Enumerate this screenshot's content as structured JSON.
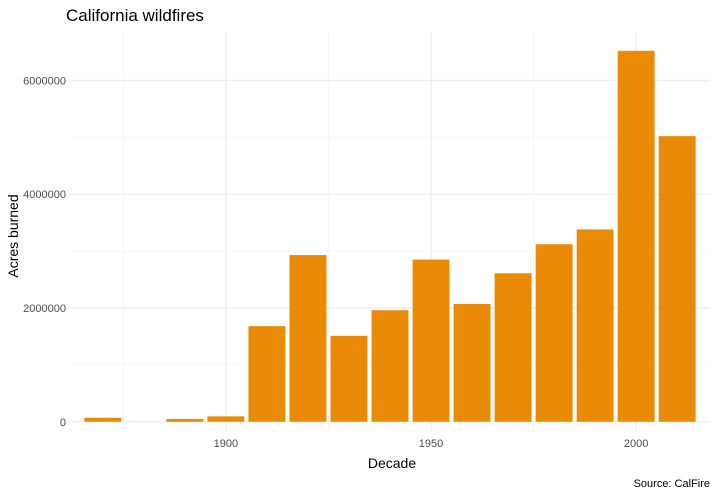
{
  "chart_data": {
    "type": "bar",
    "title": "California wildfires",
    "xlabel": "Decade",
    "ylabel": "Acres burned",
    "caption": "Source: CalFire",
    "x": [
      1870,
      1880,
      1890,
      1900,
      1910,
      1920,
      1930,
      1940,
      1950,
      1960,
      1970,
      1980,
      1990,
      2000,
      2010
    ],
    "values": [
      70000,
      0,
      50000,
      95000,
      1680000,
      2930000,
      1510000,
      1960000,
      2850000,
      2070000,
      2610000,
      3120000,
      3380000,
      6520000,
      5020000
    ],
    "xlim": [
      1862,
      2018
    ],
    "ylim": [
      -180000,
      6850000
    ],
    "x_ticks": [
      1900,
      1950,
      2000
    ],
    "x_tick_labels": [
      "1900",
      "1950",
      "2000"
    ],
    "y_ticks": [
      0,
      2000000,
      4000000,
      6000000
    ],
    "y_tick_labels": [
      "0",
      "2000000",
      "4000000",
      "6000000"
    ],
    "bar_color": "#e98b07",
    "grid": true,
    "legend": "none"
  }
}
